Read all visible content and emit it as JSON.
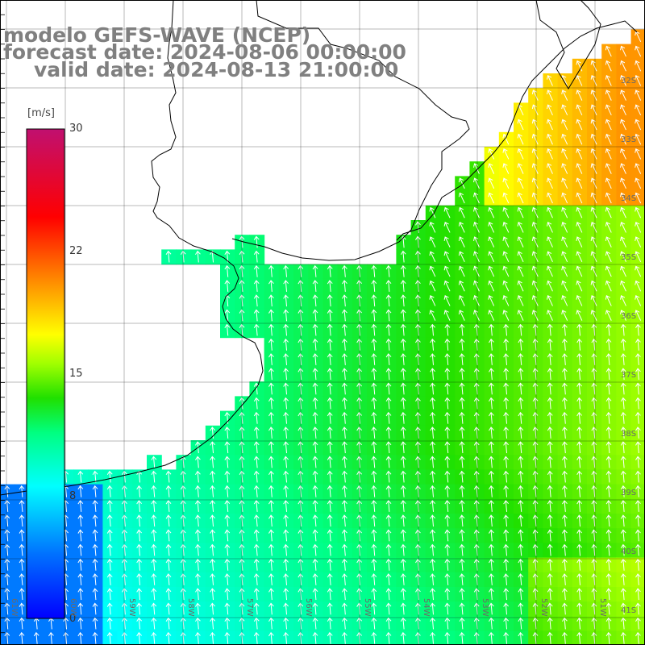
{
  "title": {
    "line1": "modelo GEFS-WAVE (NCEP)",
    "line2": "forecast date: 2024-08-06 00:00:00",
    "line3": "valid date: 2024-08-13 21:00:00"
  },
  "colorbar": {
    "unit": "[m/s]",
    "min": 0,
    "max": 30,
    "ticks": [
      "30",
      "22",
      "15",
      "8",
      "0"
    ],
    "tick_values": [
      30,
      22,
      15,
      8,
      0
    ]
  },
  "lat_labels": [
    "32S",
    "33S",
    "34S",
    "35S",
    "36S",
    "37S",
    "38S",
    "39S",
    "40S",
    "41S"
  ],
  "lon_labels": [
    "61W",
    "60W",
    "59W",
    "58W",
    "57W",
    "56W",
    "55W",
    "54W",
    "53W",
    "52W",
    "51W"
  ],
  "colors": {
    "land": "#ffffff",
    "coast": "#000000",
    "grid": "#000000",
    "arrow": "#ffffff",
    "label": "#808080"
  }
}
